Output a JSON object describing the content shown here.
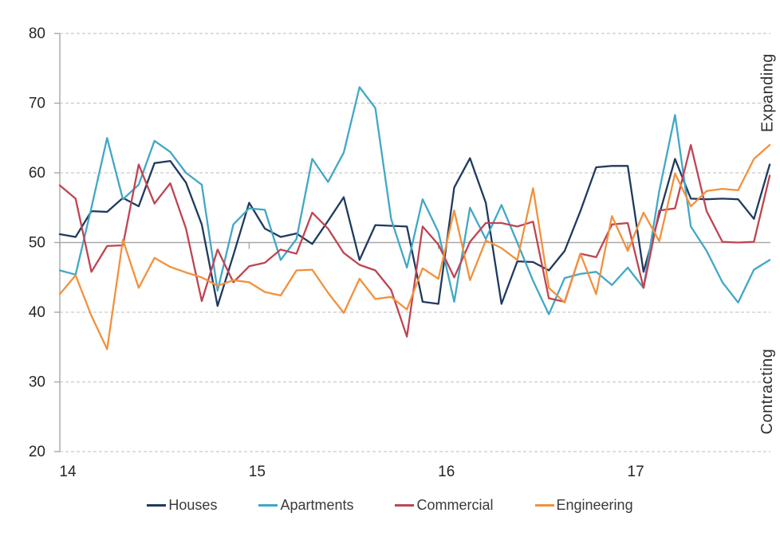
{
  "chart_data": {
    "type": "line",
    "title": "",
    "xlabel": "",
    "ylabel": "",
    "ylim": [
      20,
      80
    ],
    "y_ticks": [
      80,
      70,
      60,
      50,
      40,
      30,
      20
    ],
    "baseline_value": 50,
    "grid": "horizontal dashed gridlines; solid gray line at 50; no top/bottom axis line",
    "legend_position": "bottom",
    "x_year_ticks": [
      "14",
      "15",
      "16",
      "17"
    ],
    "categories": [
      "Jan-14",
      "Feb-14",
      "Mar-14",
      "Apr-14",
      "May-14",
      "Jun-14",
      "Jul-14",
      "Aug-14",
      "Sep-14",
      "Oct-14",
      "Nov-14",
      "Dec-14",
      "Jan-15",
      "Feb-15",
      "Mar-15",
      "Apr-15",
      "May-15",
      "Jun-15",
      "Jul-15",
      "Aug-15",
      "Sep-15",
      "Oct-15",
      "Nov-15",
      "Dec-15",
      "Jan-16",
      "Feb-16",
      "Mar-16",
      "Apr-16",
      "May-16",
      "Jun-16",
      "Jul-16",
      "Aug-16",
      "Sep-16",
      "Oct-16",
      "Nov-16",
      "Dec-16",
      "Jan-17",
      "Feb-17",
      "Mar-17",
      "Apr-17",
      "May-17",
      "Jun-17",
      "Jul-17",
      "Aug-17",
      "Sep-17",
      "Oct-17"
    ],
    "annotations": {
      "right_top": "Expanding",
      "right_bottom": "Contracting"
    },
    "series": [
      {
        "name": "Houses",
        "color": "#1f3a5f",
        "values": [
          51.2,
          50.8,
          54.5,
          54.4,
          56.4,
          55.2,
          61.4,
          61.7,
          58.6,
          52.6,
          40.9,
          48.2,
          55.7,
          52.0,
          50.8,
          51.3,
          49.8,
          53.1,
          56.5,
          47.5,
          52.5,
          52.4,
          52.3,
          41.5,
          41.2,
          57.9,
          62.1,
          55.7,
          41.2,
          47.3,
          47.2,
          46.0,
          48.8,
          54.5,
          60.8,
          61.0,
          61.0,
          45.8,
          54.0,
          62.0,
          56.3,
          56.2,
          56.3,
          56.2,
          53.4,
          61.2
        ]
      },
      {
        "name": "Apartments",
        "color": "#42a7c5",
        "values": [
          46.0,
          45.4,
          55.0,
          65.0,
          56.2,
          58.3,
          64.6,
          63.0,
          60.0,
          58.3,
          43.1,
          52.6,
          54.9,
          54.7,
          47.5,
          50.5,
          62.0,
          58.7,
          62.9,
          72.3,
          69.3,
          53.4,
          46.4,
          56.2,
          51.5,
          41.5,
          55.0,
          50.5,
          55.4,
          50.0,
          44.5,
          39.7,
          44.9,
          45.5,
          45.8,
          43.9,
          46.4,
          43.5,
          57.4,
          68.3,
          52.3,
          48.8,
          44.3,
          41.4,
          46.1,
          47.5
        ]
      },
      {
        "name": "Commercial",
        "color": "#bf4452",
        "values": [
          58.2,
          56.3,
          45.8,
          49.5,
          49.6,
          61.2,
          55.6,
          58.5,
          52.0,
          41.6,
          49.0,
          44.3,
          46.6,
          47.1,
          49.0,
          48.4,
          54.3,
          52.0,
          48.5,
          46.8,
          46.0,
          43.2,
          36.5,
          52.3,
          49.7,
          45.0,
          50.1,
          52.8,
          52.8,
          52.3,
          53.0,
          42.0,
          41.5,
          48.4,
          47.9,
          52.6,
          52.8,
          43.5,
          54.6,
          54.9,
          64.0,
          54.5,
          50.1,
          50.0,
          50.1,
          59.6
        ]
      },
      {
        "name": "Engineering",
        "color": "#f2913d",
        "values": [
          42.6,
          45.3,
          39.5,
          34.7,
          50.4,
          43.5,
          47.8,
          46.5,
          45.7,
          45.0,
          43.8,
          44.6,
          44.3,
          42.9,
          42.4,
          46.0,
          46.1,
          42.8,
          39.9,
          44.8,
          41.9,
          42.2,
          40.4,
          46.3,
          44.8,
          54.6,
          44.6,
          50.3,
          49.2,
          47.5,
          57.8,
          43.5,
          41.4,
          48.4,
          42.6,
          53.8,
          48.8,
          54.3,
          50.2,
          59.9,
          55.2,
          57.4,
          57.7,
          57.5,
          62.0,
          64.0
        ]
      }
    ],
    "colors": {
      "grid_dashed": "#c9c9c9",
      "axis_and_baseline": "#a8a8a8",
      "tick_text": "#262626",
      "legend_text": "#3a3a3a",
      "annotation_text": "#303030"
    }
  }
}
